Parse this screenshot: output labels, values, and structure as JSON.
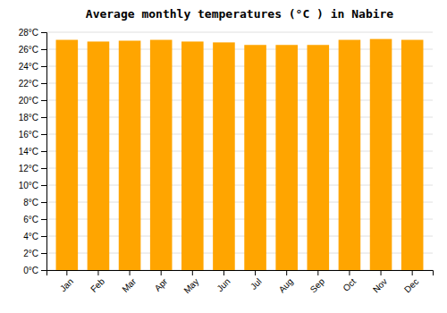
{
  "chart_data": {
    "type": "bar",
    "title": "Average monthly temperatures (°C ) in Nabire",
    "categories": [
      "Jan",
      "Feb",
      "Mar",
      "Apr",
      "May",
      "Jun",
      "Jul",
      "Aug",
      "Sep",
      "Oct",
      "Nov",
      "Dec"
    ],
    "values": [
      27.1,
      26.9,
      27.0,
      27.1,
      26.9,
      26.8,
      26.5,
      26.5,
      26.5,
      27.1,
      27.2,
      27.1
    ],
    "color": "#FFA500",
    "ylim": [
      0,
      28
    ],
    "yticks": [
      {
        "value": 0,
        "label": "0°C"
      },
      {
        "value": 2,
        "label": "2°C"
      },
      {
        "value": 4,
        "label": "4°C"
      },
      {
        "value": 6,
        "label": "6°C"
      },
      {
        "value": 8,
        "label": "8°C"
      },
      {
        "value": 10,
        "label": "10°C"
      },
      {
        "value": 12,
        "label": "12°C"
      },
      {
        "value": 14,
        "label": "14°C"
      },
      {
        "value": 16,
        "label": "16°C"
      },
      {
        "value": 18,
        "label": "18°C"
      },
      {
        "value": 20,
        "label": "20°C"
      },
      {
        "value": 22,
        "label": "22°C"
      },
      {
        "value": 24,
        "label": "24°C"
      },
      {
        "value": 26,
        "label": "26°C"
      },
      {
        "value": 28,
        "label": "28°C"
      }
    ],
    "grid": true
  }
}
